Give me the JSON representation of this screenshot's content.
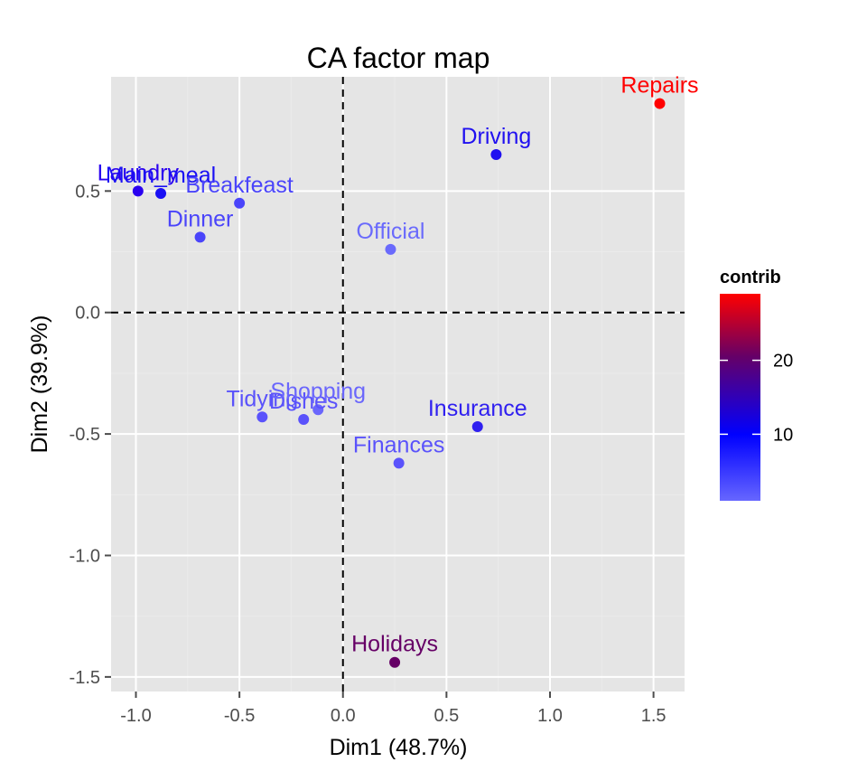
{
  "chart_data": {
    "type": "scatter",
    "title": "CA factor map",
    "xlabel": "Dim1 (48.7%)",
    "ylabel": "Dim2 (39.9%)",
    "xlim": [
      -1.12,
      1.65
    ],
    "ylim": [
      -1.56,
      0.97
    ],
    "x_ticks": [
      -1.0,
      -0.5,
      0.0,
      0.5,
      1.0,
      1.5
    ],
    "x_tick_labels": [
      "-1.0",
      "-0.5",
      "0.0",
      "0.5",
      "1.0",
      "1.5"
    ],
    "y_ticks": [
      0.5,
      0.0,
      -0.5,
      -1.0,
      -1.5
    ],
    "y_tick_labels": [
      "0.5",
      "0.0",
      "-0.5",
      "-1.0",
      "-1.5"
    ],
    "grid": true,
    "reference_lines": {
      "x": 0,
      "y": 0,
      "style": "dashed"
    },
    "points": [
      {
        "label": "Laundry",
        "x": -0.99,
        "y": 0.5,
        "contrib": 12,
        "color": "#2a00f0"
      },
      {
        "label": "Main_meal",
        "x": -0.88,
        "y": 0.49,
        "contrib": 10,
        "color": "#1a10f4"
      },
      {
        "label": "Breakfeast",
        "x": -0.5,
        "y": 0.45,
        "contrib": 6,
        "color": "#4a44fa"
      },
      {
        "label": "Dinner",
        "x": -0.69,
        "y": 0.31,
        "contrib": 5,
        "color": "#4a44fa"
      },
      {
        "label": "Official",
        "x": 0.23,
        "y": 0.26,
        "contrib": 3,
        "color": "#6a6afc"
      },
      {
        "label": "Driving",
        "x": 0.74,
        "y": 0.65,
        "contrib": 10,
        "color": "#2010f0"
      },
      {
        "label": "Repairs",
        "x": 1.53,
        "y": 0.86,
        "contrib": 29,
        "color": "#ff0000"
      },
      {
        "label": "Tidying",
        "x": -0.39,
        "y": -0.43,
        "contrib": 4,
        "color": "#5a52fb"
      },
      {
        "label": "Dishes",
        "x": -0.19,
        "y": -0.44,
        "contrib": 4,
        "color": "#5a52fb"
      },
      {
        "label": "Shopping",
        "x": -0.12,
        "y": -0.4,
        "contrib": 3,
        "color": "#6a66fc"
      },
      {
        "label": "Insurance",
        "x": 0.65,
        "y": -0.47,
        "contrib": 8,
        "color": "#3020f0"
      },
      {
        "label": "Finances",
        "x": 0.27,
        "y": -0.62,
        "contrib": 4,
        "color": "#5a52fb"
      },
      {
        "label": "Holidays",
        "x": 0.25,
        "y": -1.44,
        "contrib": 21,
        "color": "#660066"
      }
    ],
    "legend": {
      "title": "contrib",
      "placement": "right",
      "type": "colorbar",
      "ticks": [
        20,
        10
      ],
      "tick_labels": [
        "20",
        "10"
      ],
      "range": [
        1,
        29
      ],
      "gradient": [
        "#ff0000",
        "#660066",
        "#0000ff",
        "#6666ff"
      ]
    }
  }
}
